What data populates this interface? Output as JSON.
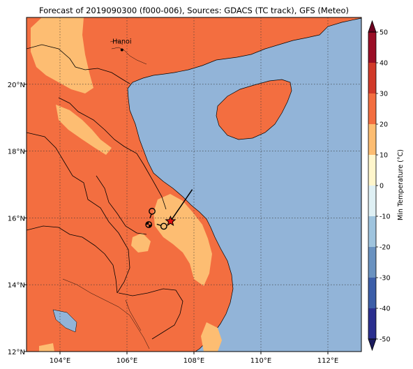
{
  "title": "Forecast of 2019090300 (f000-006), Sources: GDACS (TC track), GFS (Meteo)",
  "map": {
    "lon_range": [
      103.0,
      113.0
    ],
    "lat_range": [
      12.0,
      22.0
    ],
    "gridlines": true,
    "ocean_color": "#92b4d8",
    "x_ticks": [
      {
        "lon": 104,
        "label": "104°E"
      },
      {
        "lon": 106,
        "label": "106°E"
      },
      {
        "lon": 108,
        "label": "108°E"
      },
      {
        "lon": 110,
        "label": "110°E"
      },
      {
        "lon": 112,
        "label": "112°E"
      }
    ],
    "y_ticks": [
      {
        "lat": 12,
        "label": "12°N"
      },
      {
        "lat": 14,
        "label": "14°N"
      },
      {
        "lat": 16,
        "label": "16°N"
      },
      {
        "lat": 18,
        "label": "18°N"
      },
      {
        "lat": 20,
        "label": "20°N"
      }
    ],
    "places": [
      {
        "name": "Hanoi",
        "lon": 105.85,
        "lat": 21.03
      }
    ],
    "storm": {
      "current_position": {
        "lon": 107.3,
        "lat": 15.9
      },
      "motion_vector_end": {
        "lon": 107.95,
        "lat": 16.85
      },
      "track_symbols": [
        {
          "lon": 106.75,
          "lat": 16.2
        },
        {
          "lon": 106.65,
          "lat": 15.8
        },
        {
          "lon": 107.1,
          "lat": 15.75
        }
      ]
    }
  },
  "colorbar": {
    "label": "Min Temperature (°C)",
    "min": -50,
    "max": 50,
    "extend": "both",
    "levels": [
      -50,
      -40,
      -30,
      -20,
      -10,
      0,
      10,
      20,
      30,
      40,
      50
    ],
    "colors": [
      "#2b2f8f",
      "#3c5ea8",
      "#6a92c0",
      "#9fc4de",
      "#dff0f4",
      "#fff6cc",
      "#fdbd72",
      "#f36e40",
      "#d13a2a",
      "#9a0e26"
    ],
    "under_color": "#1c1c5e",
    "over_color": "#6d0020",
    "tick_labels": [
      "-50",
      "-40",
      "-30",
      "-20",
      "-10",
      "0",
      "10",
      "20",
      "30",
      "40",
      "50"
    ]
  }
}
